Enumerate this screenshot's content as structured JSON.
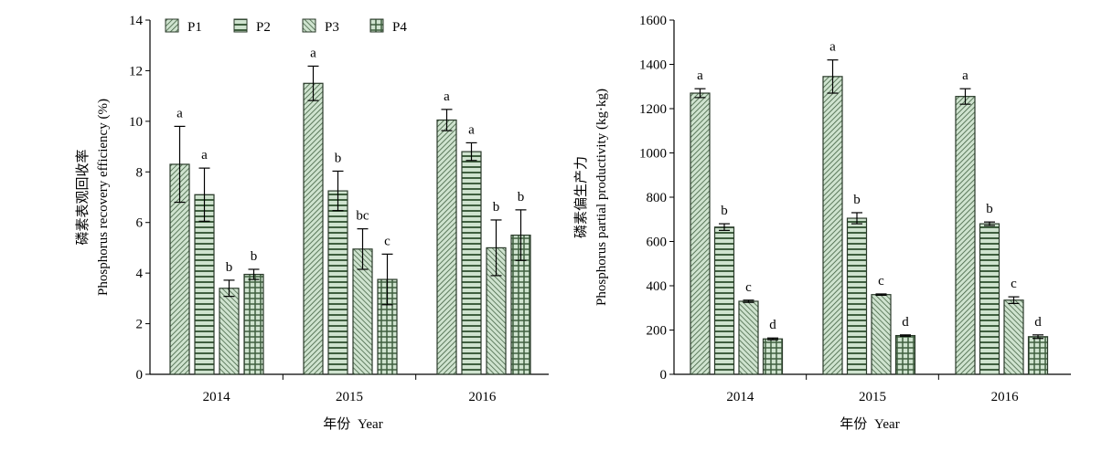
{
  "colors": {
    "bar_fill": "#cfe3cf",
    "pattern_stroke": "#3f5f3f"
  },
  "legend": {
    "entries": [
      {
        "label": "P1",
        "pattern": "diag-dense"
      },
      {
        "label": "P2",
        "pattern": "horizontal"
      },
      {
        "label": "P3",
        "pattern": "diag-back"
      },
      {
        "label": "P4",
        "pattern": "grid"
      }
    ]
  },
  "xlabel_cn": "年份",
  "xlabel_en": "Year",
  "chart_data": [
    {
      "type": "bar",
      "categories": [
        "2014",
        "2015",
        "2016"
      ],
      "ylabel_cn": "磷素表观回收率",
      "ylabel_en": "Phosphorus recovery efficiency (%)",
      "ylim": [
        0,
        14
      ],
      "yticks": [
        "0",
        "2",
        "4",
        "6",
        "8",
        "10",
        "12",
        "14"
      ],
      "series": [
        {
          "name": "P1",
          "values": [
            8.3,
            11.5,
            10.05
          ],
          "errors": [
            1.5,
            0.68,
            0.42
          ],
          "labels": [
            "a",
            "a",
            "a"
          ]
        },
        {
          "name": "P2",
          "values": [
            7.1,
            7.25,
            8.8
          ],
          "errors": [
            1.05,
            0.78,
            0.35
          ],
          "labels": [
            "a",
            "b",
            "a"
          ]
        },
        {
          "name": "P3",
          "values": [
            3.4,
            4.95,
            5.0
          ],
          "errors": [
            0.32,
            0.8,
            1.1
          ],
          "labels": [
            "b",
            "bc",
            "b"
          ]
        },
        {
          "name": "P4",
          "values": [
            3.95,
            3.75,
            5.5
          ],
          "errors": [
            0.2,
            1.0,
            1.0
          ],
          "labels": [
            "b",
            "c",
            "b"
          ]
        }
      ]
    },
    {
      "type": "bar",
      "categories": [
        "2014",
        "2015",
        "2016"
      ],
      "ylabel_cn": "磷素偏生产力",
      "ylabel_en": "Phosphorus partial productivity (kg·kg)",
      "ylim": [
        0,
        1600
      ],
      "yticks": [
        "0",
        "200",
        "400",
        "600",
        "800",
        "1000",
        "1200",
        "1400",
        "1600"
      ],
      "series": [
        {
          "name": "P1",
          "values": [
            1270,
            1345,
            1255
          ],
          "errors": [
            20,
            75,
            35
          ],
          "labels": [
            "a",
            "a",
            "a"
          ]
        },
        {
          "name": "P2",
          "values": [
            665,
            705,
            680
          ],
          "errors": [
            15,
            25,
            8
          ],
          "labels": [
            "b",
            "b",
            "b"
          ]
        },
        {
          "name": "P3",
          "values": [
            330,
            360,
            335
          ],
          "errors": [
            5,
            3,
            15
          ],
          "labels": [
            "c",
            "c",
            "c"
          ]
        },
        {
          "name": "P4",
          "values": [
            160,
            175,
            170
          ],
          "errors": [
            4,
            3,
            8
          ],
          "labels": [
            "d",
            "d",
            "d"
          ]
        }
      ]
    }
  ]
}
